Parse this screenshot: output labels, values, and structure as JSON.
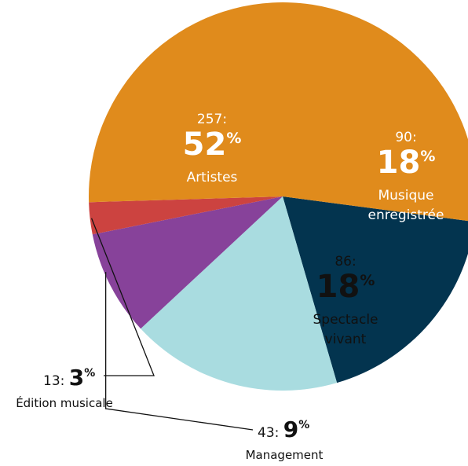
{
  "chart_data": {
    "type": "pie",
    "title": "",
    "percent_sign": "%",
    "slices": [
      {
        "label": "Artistes",
        "label_lines": [
          "Artistes"
        ],
        "value": 257,
        "percent": 52,
        "color": "#E08B1C",
        "label_color": "#ffffff",
        "placement": "inside"
      },
      {
        "label": "Musique enregistrée",
        "label_lines": [
          "Musique",
          "enregistrée"
        ],
        "value": 90,
        "percent": 18,
        "color": "#03344F",
        "label_color": "#ffffff",
        "placement": "inside"
      },
      {
        "label": "Spectacle vivant",
        "label_lines": [
          "Spectacle",
          "vivant"
        ],
        "value": 86,
        "percent": 18,
        "color": "#A9DCE0",
        "label_color": "#111111",
        "placement": "inside"
      },
      {
        "label": "Management",
        "label_lines": [
          "Management"
        ],
        "value": 43,
        "percent": 9,
        "color": "#87429A",
        "label_color": "#111111",
        "placement": "outside"
      },
      {
        "label": "Édition musicale",
        "label_lines": [
          "Édition musicale"
        ],
        "value": 13,
        "percent": 3,
        "color": "#CC4340",
        "label_color": "#111111",
        "placement": "outside"
      }
    ]
  }
}
